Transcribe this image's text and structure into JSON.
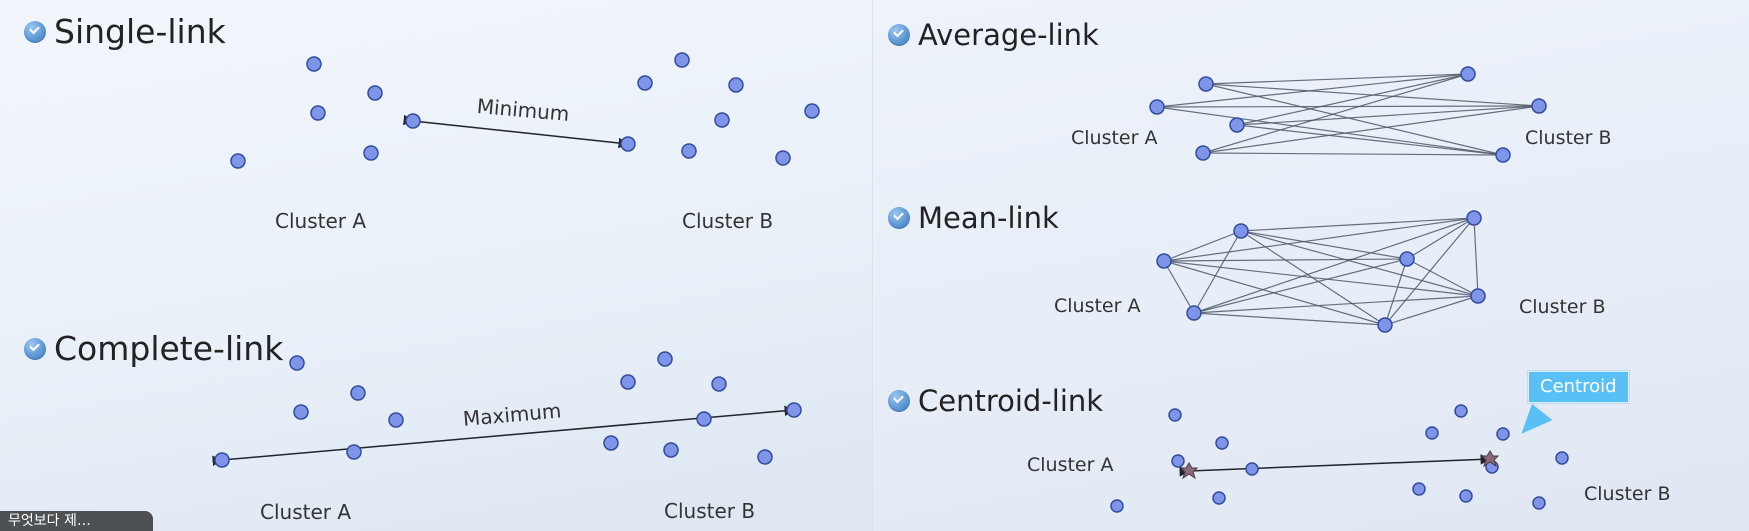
{
  "headings": {
    "single": "Single-link",
    "complete": "Complete-link",
    "average": "Average-link",
    "mean": "Mean-link",
    "centroid": "Centroid-link"
  },
  "labels": {
    "minimum": "Minimum",
    "maximum": "Maximum",
    "cluster_a": "Cluster A",
    "cluster_b": "Cluster B",
    "centroid": "Centroid"
  },
  "bottom_badge": "무엇보다 제…"
}
